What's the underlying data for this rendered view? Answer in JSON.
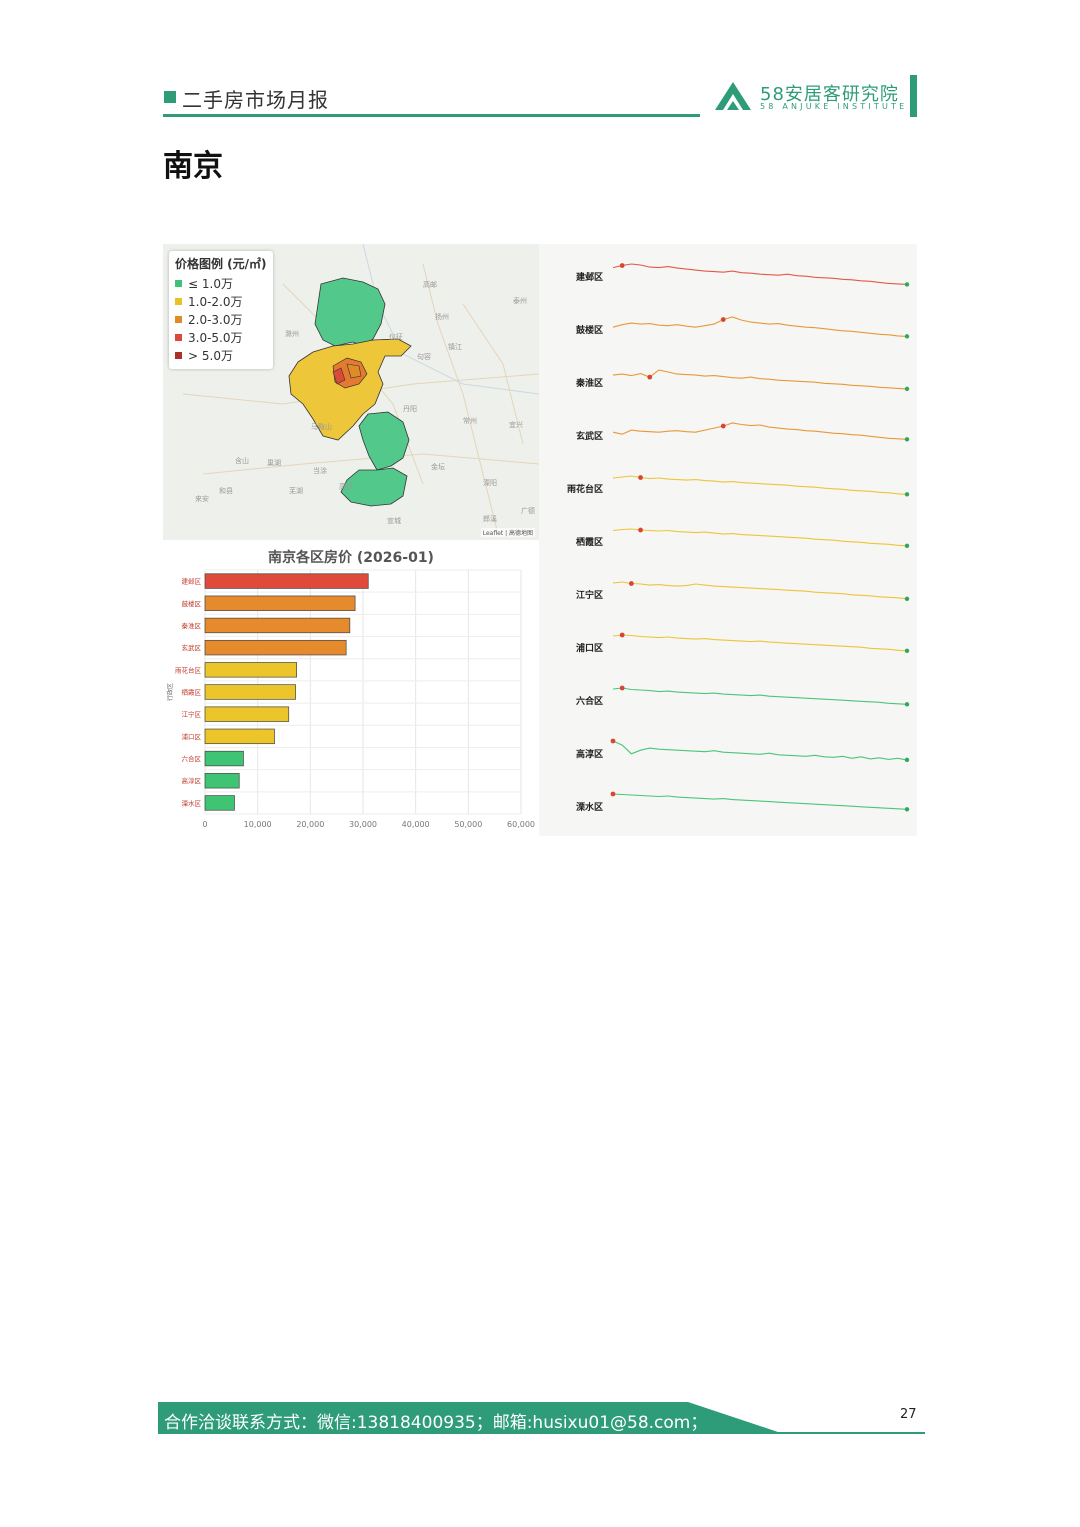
{
  "header": {
    "report_title": "二手房市场月报",
    "logo_cn": "58安居客研究院",
    "logo_en": "58 ANJUKE INSTITUTE",
    "brand_color": "#2e9c78"
  },
  "page_title": "南京",
  "map": {
    "legend": {
      "title": "价格图例 (元/㎡)",
      "items": [
        {
          "label": "≤ 1.0万",
          "color": "#41c07a"
        },
        {
          "label": "1.0-2.0万",
          "color": "#e8c22a"
        },
        {
          "label": "2.0-3.0万",
          "color": "#e08a28"
        },
        {
          "label": "3.0-5.0万",
          "color": "#d94a3a"
        },
        {
          "label": "> 5.0万",
          "color": "#a8322a"
        }
      ]
    },
    "attribution": "Leaflet | 高德地图",
    "places": [
      "扬州",
      "滁州",
      "镇江",
      "泰州",
      "马鞍山",
      "芜湖",
      "句容",
      "常州",
      "溧阳",
      "宣城",
      "天长",
      "来安",
      "仪征",
      "丹阳",
      "金坛",
      "高邮",
      "宜兴",
      "巢湖",
      "含山",
      "和县",
      "当涂",
      "郎溪",
      "高淳",
      "广德"
    ]
  },
  "chart_data": [
    {
      "type": "bar",
      "orientation": "horizontal",
      "title": "南京各区房价 (2026-01)",
      "ylabel": "行政区",
      "categories": [
        "建邺区",
        "鼓楼区",
        "秦淮区",
        "玄武区",
        "雨花台区",
        "栖霞区",
        "江宁区",
        "浦口区",
        "六合区",
        "高淳区",
        "溧水区"
      ],
      "values": [
        31000,
        28500,
        27500,
        26800,
        17400,
        17200,
        15900,
        13200,
        7300,
        6500,
        5600
      ],
      "colors": [
        "#e04a3a",
        "#e68a2e",
        "#e68a2e",
        "#e68a2e",
        "#ecc52a",
        "#ecc52a",
        "#ecc52a",
        "#ecc52a",
        "#3fc474",
        "#3fc474",
        "#3fc474"
      ],
      "xlim": [
        0,
        60000
      ],
      "xticks": [
        "0",
        "10,000",
        "20,000",
        "30,000",
        "40,000",
        "50,000",
        "60,000"
      ],
      "grid": true
    },
    {
      "type": "line",
      "subtype": "sparklines",
      "series": [
        {
          "name": "建邺区",
          "color": "#e05a4a",
          "peak_pos": 0.04,
          "values": [
            0.93,
            0.97,
            1.0,
            0.98,
            0.94,
            0.93,
            0.95,
            0.92,
            0.9,
            0.88,
            0.86,
            0.85,
            0.84,
            0.86,
            0.83,
            0.82,
            0.8,
            0.79,
            0.78,
            0.8,
            0.77,
            0.76,
            0.74,
            0.73,
            0.72,
            0.7,
            0.69,
            0.67,
            0.66,
            0.64,
            0.62,
            0.61,
            0.6
          ]
        },
        {
          "name": "鼓楼区",
          "color": "#e8983a",
          "peak_pos": 0.39,
          "values": [
            0.8,
            0.85,
            0.88,
            0.86,
            0.87,
            0.84,
            0.83,
            0.85,
            0.82,
            0.8,
            0.83,
            0.86,
            0.95,
            1.0,
            0.94,
            0.9,
            0.88,
            0.86,
            0.87,
            0.84,
            0.82,
            0.8,
            0.79,
            0.77,
            0.75,
            0.73,
            0.72,
            0.7,
            0.68,
            0.66,
            0.65,
            0.63,
            0.62
          ]
        },
        {
          "name": "秦淮区",
          "color": "#e8983a",
          "peak_pos": 0.14,
          "values": [
            0.9,
            0.92,
            0.89,
            0.93,
            0.86,
            1.0,
            0.96,
            0.92,
            0.91,
            0.9,
            0.88,
            0.89,
            0.87,
            0.85,
            0.84,
            0.86,
            0.83,
            0.82,
            0.8,
            0.79,
            0.78,
            0.77,
            0.76,
            0.74,
            0.73,
            0.72,
            0.7,
            0.69,
            0.68,
            0.66,
            0.65,
            0.64,
            0.63
          ]
        },
        {
          "name": "玄武区",
          "color": "#e8983a",
          "peak_pos": 0.39,
          "values": [
            0.82,
            0.78,
            0.86,
            0.84,
            0.83,
            0.82,
            0.84,
            0.85,
            0.83,
            0.82,
            0.86,
            0.9,
            0.94,
            1.0,
            0.97,
            0.95,
            0.96,
            0.92,
            0.9,
            0.88,
            0.87,
            0.85,
            0.84,
            0.82,
            0.8,
            0.79,
            0.77,
            0.76,
            0.74,
            0.72,
            0.7,
            0.69,
            0.68
          ]
        },
        {
          "name": "雨花台区",
          "color": "#ecc53a",
          "peak_pos": 0.08,
          "values": [
            0.96,
            0.98,
            1.0,
            0.97,
            0.95,
            0.96,
            0.94,
            0.93,
            0.92,
            0.93,
            0.91,
            0.9,
            0.88,
            0.89,
            0.87,
            0.86,
            0.85,
            0.84,
            0.83,
            0.82,
            0.8,
            0.79,
            0.78,
            0.76,
            0.75,
            0.74,
            0.72,
            0.71,
            0.7,
            0.68,
            0.67,
            0.65,
            0.64
          ]
        },
        {
          "name": "栖霞区",
          "color": "#ecc53a",
          "peak_pos": 0.08,
          "values": [
            0.97,
            0.99,
            1.0,
            0.98,
            0.97,
            0.96,
            0.97,
            0.95,
            0.94,
            0.93,
            0.94,
            0.92,
            0.9,
            0.91,
            0.89,
            0.88,
            0.87,
            0.86,
            0.85,
            0.84,
            0.83,
            0.82,
            0.8,
            0.79,
            0.78,
            0.76,
            0.75,
            0.74,
            0.72,
            0.71,
            0.7,
            0.68,
            0.67
          ]
        },
        {
          "name": "江宁区",
          "color": "#ecc53a",
          "peak_pos": 0.06,
          "values": [
            0.98,
            1.0,
            0.97,
            0.96,
            0.94,
            0.95,
            0.93,
            0.92,
            0.93,
            0.96,
            0.94,
            0.92,
            0.91,
            0.9,
            0.89,
            0.88,
            0.87,
            0.86,
            0.85,
            0.84,
            0.83,
            0.82,
            0.8,
            0.79,
            0.78,
            0.77,
            0.75,
            0.74,
            0.73,
            0.71,
            0.7,
            0.69,
            0.67
          ]
        },
        {
          "name": "浦口区",
          "color": "#ecc53a",
          "peak_pos": 0.04,
          "values": [
            0.98,
            1.0,
            0.99,
            0.97,
            0.96,
            0.95,
            0.96,
            0.94,
            0.93,
            0.92,
            0.93,
            0.91,
            0.9,
            0.89,
            0.88,
            0.87,
            0.88,
            0.86,
            0.85,
            0.84,
            0.83,
            0.82,
            0.81,
            0.8,
            0.79,
            0.78,
            0.77,
            0.76,
            0.74,
            0.73,
            0.72,
            0.7,
            0.69
          ]
        },
        {
          "name": "六合区",
          "color": "#4cc47a",
          "peak_pos": 0.04,
          "values": [
            0.98,
            1.0,
            0.97,
            0.96,
            0.95,
            0.93,
            0.94,
            0.92,
            0.91,
            0.9,
            0.89,
            0.9,
            0.88,
            0.87,
            0.86,
            0.85,
            0.86,
            0.84,
            0.83,
            0.82,
            0.81,
            0.8,
            0.79,
            0.78,
            0.77,
            0.76,
            0.75,
            0.74,
            0.73,
            0.72,
            0.7,
            0.69,
            0.68
          ]
        },
        {
          "name": "高淳区",
          "color": "#4cc47a",
          "peak_pos": 0.0,
          "values": [
            1.0,
            0.92,
            0.75,
            0.82,
            0.86,
            0.84,
            0.83,
            0.82,
            0.81,
            0.8,
            0.79,
            0.81,
            0.78,
            0.77,
            0.76,
            0.75,
            0.74,
            0.76,
            0.73,
            0.72,
            0.71,
            0.7,
            0.72,
            0.69,
            0.68,
            0.7,
            0.66,
            0.69,
            0.65,
            0.67,
            0.64,
            0.66,
            0.63
          ]
        },
        {
          "name": "溧水区",
          "color": "#4cc47a",
          "peak_pos": 0.0,
          "values": [
            1.0,
            0.99,
            0.98,
            0.97,
            0.96,
            0.95,
            0.96,
            0.94,
            0.93,
            0.92,
            0.91,
            0.9,
            0.91,
            0.89,
            0.88,
            0.87,
            0.86,
            0.85,
            0.84,
            0.83,
            0.82,
            0.81,
            0.8,
            0.79,
            0.78,
            0.77,
            0.76,
            0.75,
            0.74,
            0.73,
            0.72,
            0.71,
            0.7
          ]
        }
      ]
    }
  ],
  "footer": {
    "contact": "合作洽谈联系方式：微信:13818400935；邮箱:husixu01@58.com；",
    "page_number": "27"
  }
}
